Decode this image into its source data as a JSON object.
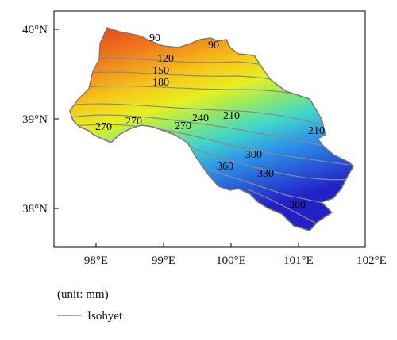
{
  "map": {
    "lat_ticks": [
      "40°N",
      "39°N",
      "38°N"
    ],
    "lon_ticks": [
      "98°E",
      "99°E",
      "100°E",
      "101°E",
      "102°E"
    ],
    "contour_labels": [
      "90",
      "90",
      "120",
      "150",
      "180",
      "210",
      "240",
      "270",
      "270",
      "270",
      "210",
      "300",
      "360",
      "330",
      "360"
    ],
    "colors": {
      "low": "#e8461e",
      "mid_low": "#f5c61a",
      "mid": "#e7f01e",
      "mid_high": "#3ed0e8",
      "high": "#2a2bd8",
      "isohyet_line": "#8a8a8a",
      "frame": "#000000"
    }
  },
  "legend": {
    "unit_text": "(unit: mm)",
    "isohyet_label": "Isohyet"
  }
}
